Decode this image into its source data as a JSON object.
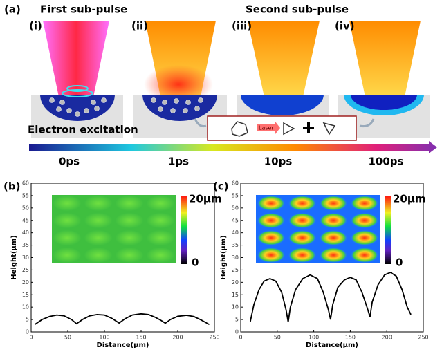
{
  "diagram": {
    "panel_label": "(a)",
    "first": "First sub-pulse",
    "second": "Second sub-pulse",
    "steps": [
      "(i)",
      "(ii)",
      "(iii)",
      "(iv)"
    ],
    "excitation": "Electron excitation",
    "laser": "Laser",
    "timeline": [
      "0ps",
      "1ps",
      "10ps",
      "100ps"
    ]
  },
  "chart_data": [
    {
      "type": "line",
      "panel_label": "(b)",
      "x_label": "Distance(μm)",
      "y_label": "Height(μm)",
      "xlim": [
        0,
        250
      ],
      "ylim": [
        0,
        60
      ],
      "xticks": [
        0,
        50,
        100,
        150,
        200,
        250
      ],
      "yticks": [
        0,
        5,
        10,
        15,
        20,
        25,
        30,
        35,
        40,
        45,
        50,
        55,
        60
      ],
      "color": "#000000",
      "colorbar_labels": [
        "20μm",
        "0"
      ],
      "x": [
        5,
        15,
        25,
        35,
        45,
        55,
        62,
        70,
        80,
        90,
        100,
        110,
        120,
        128,
        138,
        150,
        160,
        170,
        178,
        183,
        190,
        200,
        212,
        222,
        232,
        243
      ],
      "values": [
        3,
        5,
        6.2,
        6.8,
        6.5,
        5,
        3.3,
        5,
        6.5,
        7,
        6.8,
        5.5,
        3.6,
        5.3,
        6.8,
        7.3,
        7,
        5.8,
        4.5,
        3.5,
        5,
        6.3,
        6.7,
        6.2,
        4.8,
        3
      ]
    },
    {
      "type": "line",
      "panel_label": "(c)",
      "x_label": "Distance(μm)",
      "y_label": "Height(μm)",
      "xlim": [
        0,
        250
      ],
      "ylim": [
        0,
        60
      ],
      "xticks": [
        0,
        50,
        100,
        150,
        200,
        250
      ],
      "yticks": [
        0,
        5,
        10,
        15,
        20,
        25,
        30,
        35,
        40,
        45,
        50,
        55,
        60
      ],
      "color": "#000000",
      "colorbar_labels": [
        "20μm",
        "0"
      ],
      "x": [
        13,
        18,
        25,
        32,
        40,
        48,
        56,
        62,
        65,
        68,
        75,
        85,
        95,
        105,
        113,
        120,
        123,
        126,
        133,
        142,
        150,
        158,
        166,
        174,
        177,
        180,
        188,
        197,
        205,
        213,
        221,
        228,
        233
      ],
      "values": [
        4,
        11,
        17,
        20.5,
        21.5,
        20.5,
        16,
        9,
        4,
        10,
        17,
        21.5,
        23,
        21.5,
        16,
        9,
        5,
        11,
        18,
        21,
        22,
        21,
        16,
        9,
        6,
        12,
        19,
        23,
        24,
        22.5,
        17,
        10,
        7
      ]
    }
  ]
}
